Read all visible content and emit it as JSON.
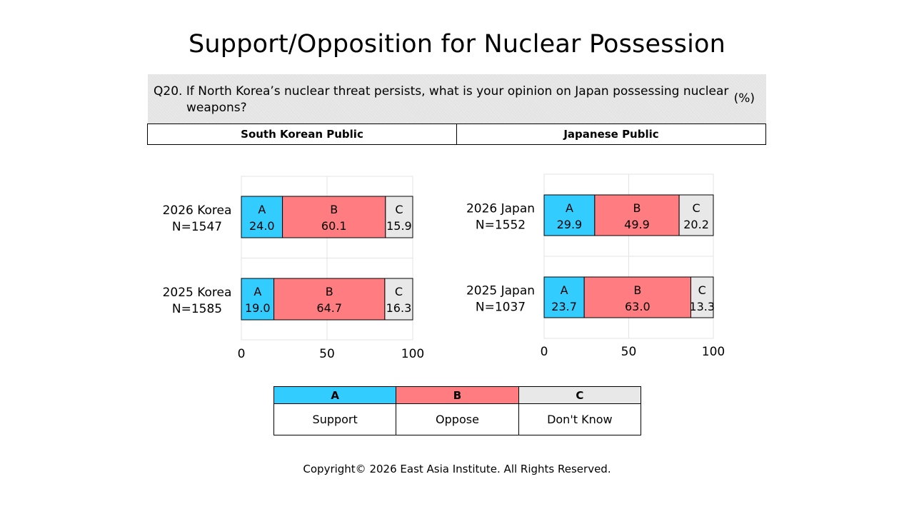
{
  "title": "Support/Opposition for Nuclear Possession",
  "question": {
    "text": "Q20. If North Korea’s nuclear threat persists, what is your opinion on Japan possessing nuclear weapons?",
    "unit": "(%)"
  },
  "panel_headers": [
    "South Korean Public",
    "Japanese Public"
  ],
  "legend": {
    "codes": [
      "A",
      "B",
      "C"
    ],
    "labels": [
      "Support",
      "Oppose",
      "Don't Know"
    ]
  },
  "copyright": "Copyright© 2026 East Asia Institute. All Rights Reserved.",
  "colors": {
    "A": "#33ccff",
    "B": "#ff7c80",
    "C": "#e8e8e8"
  },
  "chart_data": [
    {
      "type": "bar",
      "orientation": "horizontal",
      "stacked": true,
      "categories": [
        {
          "line1": "2026 Korea",
          "line2": "N=1547"
        },
        {
          "line1": "2025 Korea",
          "line2": "N=1585"
        }
      ],
      "series": [
        {
          "name": "A",
          "values": [
            24.0,
            19.0
          ]
        },
        {
          "name": "B",
          "values": [
            60.1,
            64.7
          ]
        },
        {
          "name": "C",
          "values": [
            15.9,
            16.3
          ]
        }
      ],
      "xlim": [
        0,
        100
      ],
      "xticks": [
        "0",
        "50",
        "100"
      ],
      "grid": true
    },
    {
      "type": "bar",
      "orientation": "horizontal",
      "stacked": true,
      "categories": [
        {
          "line1": "2026 Japan",
          "line2": "N=1552"
        },
        {
          "line1": "2025 Japan",
          "line2": "N=1037"
        }
      ],
      "series": [
        {
          "name": "A",
          "values": [
            29.9,
            23.7
          ]
        },
        {
          "name": "B",
          "values": [
            49.9,
            63.0
          ]
        },
        {
          "name": "C",
          "values": [
            20.2,
            13.3
          ]
        }
      ],
      "xlim": [
        0,
        100
      ],
      "xticks": [
        "0",
        "50",
        "100"
      ],
      "grid": true
    }
  ]
}
